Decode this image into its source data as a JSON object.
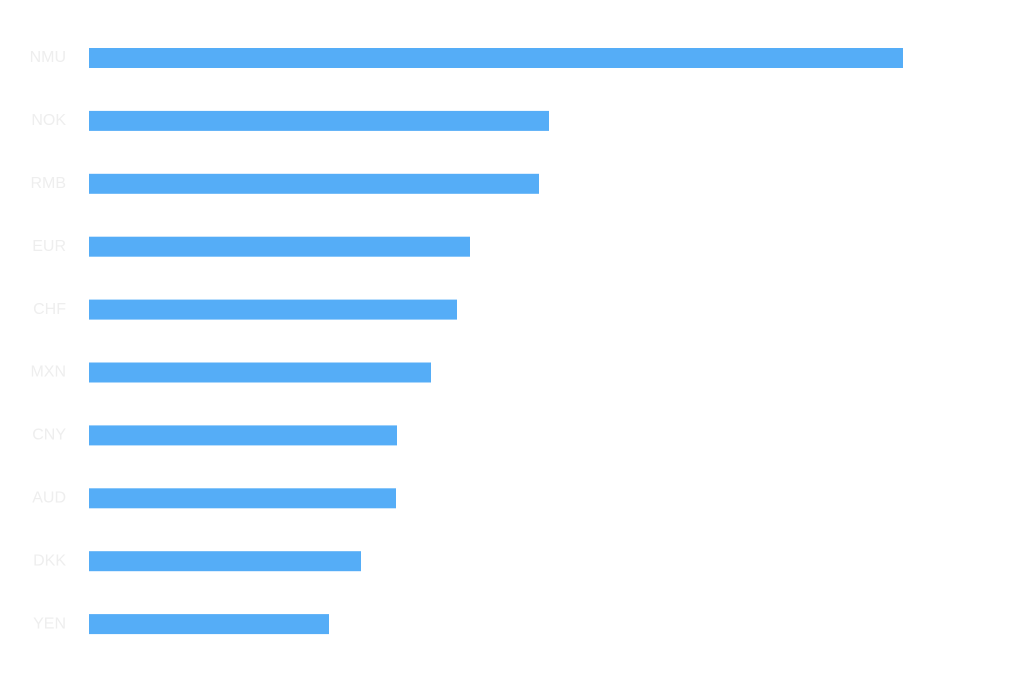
{
  "chart_data": {
    "type": "bar",
    "orientation": "horizontal",
    "categories": [
      "NMU",
      "NOK",
      "RMB",
      "EUR",
      "CHF",
      "MXN",
      "CNY",
      "AUD",
      "DKK",
      "YEN"
    ],
    "values": [
      81.4,
      46,
      45,
      38.1,
      36.8,
      34.2,
      30.8,
      30.7,
      27.2,
      24
    ],
    "color": "#55adf7"
  }
}
